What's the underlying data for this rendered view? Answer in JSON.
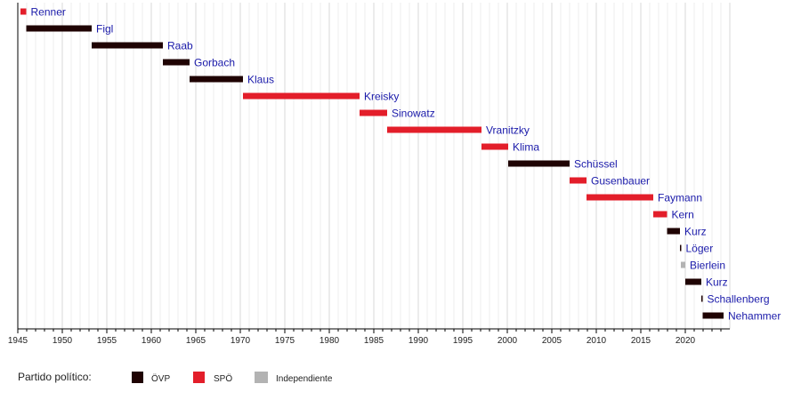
{
  "chart_data": {
    "type": "timeline",
    "xlim": [
      1945,
      2025
    ],
    "tick_labels": [
      "1945",
      "1950",
      "1955",
      "1960",
      "1965",
      "1970",
      "1975",
      "1980",
      "1985",
      "1990",
      "1995",
      "2000",
      "2005",
      "2010",
      "2015",
      "2020"
    ],
    "colors": {
      "OVP": "#1f0303",
      "SPO": "#e31e2a",
      "IND": "#b3b3b3"
    },
    "series": [
      {
        "name": "Renner",
        "start": 1945.3,
        "end": 1945.95,
        "party": "SPO"
      },
      {
        "name": "Figl",
        "start": 1945.95,
        "end": 1953.3,
        "party": "OVP"
      },
      {
        "name": "Raab",
        "start": 1953.3,
        "end": 1961.3,
        "party": "OVP"
      },
      {
        "name": "Gorbach",
        "start": 1961.3,
        "end": 1964.3,
        "party": "OVP"
      },
      {
        "name": "Klaus",
        "start": 1964.3,
        "end": 1970.3,
        "party": "OVP"
      },
      {
        "name": "Kreisky",
        "start": 1970.3,
        "end": 1983.4,
        "party": "SPO"
      },
      {
        "name": "Sinowatz",
        "start": 1983.4,
        "end": 1986.5,
        "party": "SPO"
      },
      {
        "name": "Vranitzky",
        "start": 1986.5,
        "end": 1997.1,
        "party": "SPO"
      },
      {
        "name": "Klima",
        "start": 1997.1,
        "end": 2000.1,
        "party": "SPO"
      },
      {
        "name": "Schüssel",
        "start": 2000.1,
        "end": 2007.0,
        "party": "OVP"
      },
      {
        "name": "Gusenbauer",
        "start": 2007.0,
        "end": 2008.9,
        "party": "SPO"
      },
      {
        "name": "Faymann",
        "start": 2008.9,
        "end": 2016.4,
        "party": "SPO"
      },
      {
        "name": "Kern",
        "start": 2016.4,
        "end": 2017.95,
        "party": "SPO"
      },
      {
        "name": "Kurz",
        "start": 2017.95,
        "end": 2019.4,
        "party": "OVP"
      },
      {
        "name": "Löger",
        "start": 2019.4,
        "end": 2019.5,
        "party": "OVP"
      },
      {
        "name": "Bierlein",
        "start": 2019.5,
        "end": 2020.0,
        "party": "IND"
      },
      {
        "name": "Kurz",
        "start": 2020.0,
        "end": 2021.8,
        "party": "OVP"
      },
      {
        "name": "Schallenberg",
        "start": 2021.8,
        "end": 2021.95,
        "party": "OVP"
      },
      {
        "name": "Nehammer",
        "start": 2021.95,
        "end": 2024.3,
        "party": "OVP"
      }
    ]
  },
  "legend": {
    "title": "Partido político:",
    "items": [
      {
        "label": "ÖVP",
        "party": "OVP"
      },
      {
        "label": "SPÖ",
        "party": "SPO"
      },
      {
        "label": "Independiente",
        "party": "IND"
      }
    ]
  }
}
